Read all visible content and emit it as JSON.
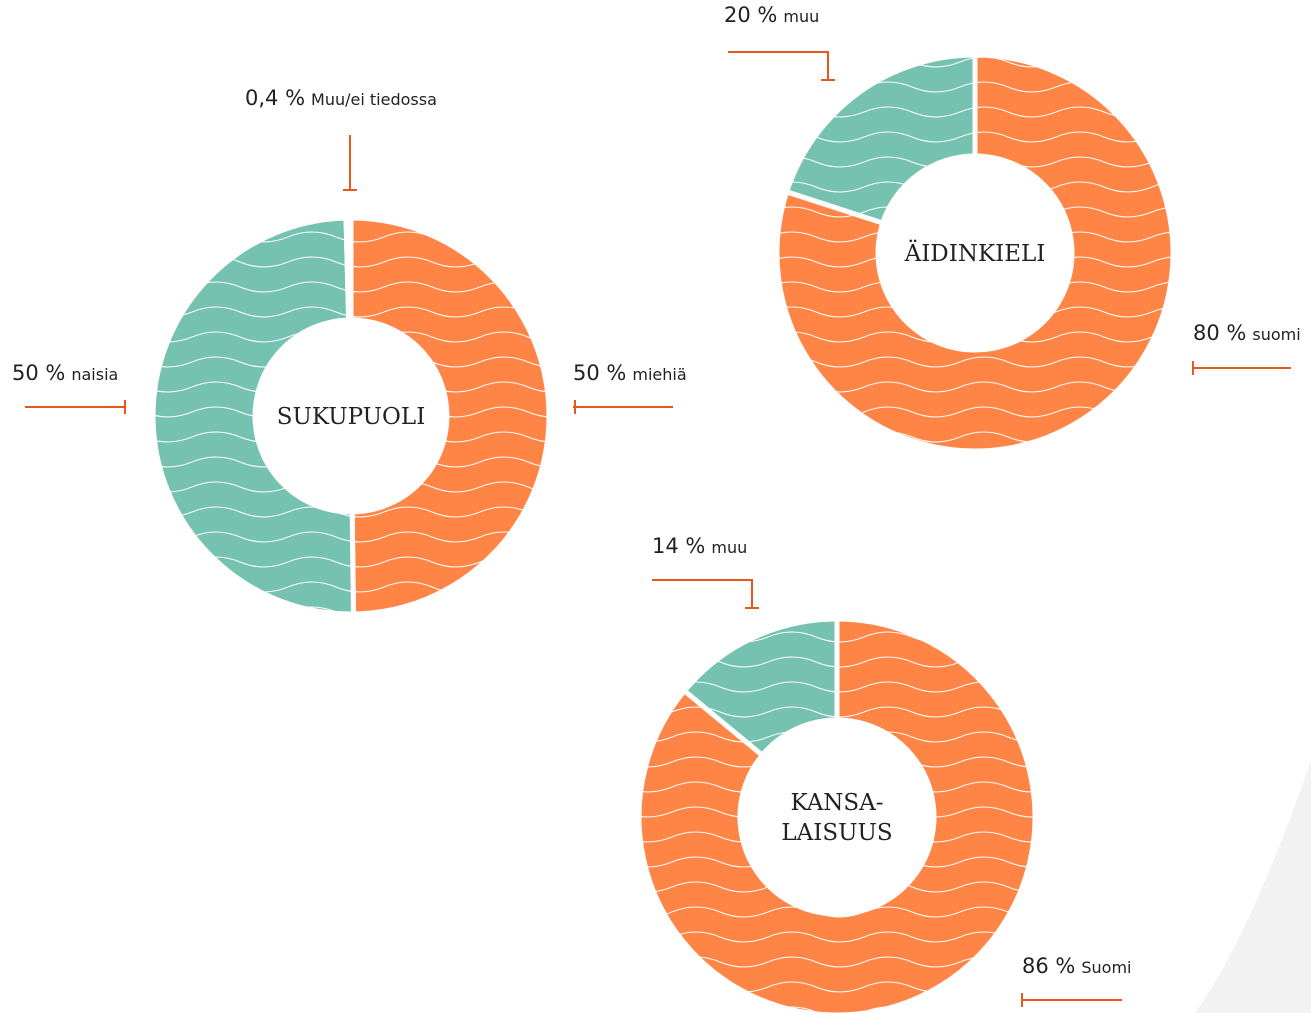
{
  "chart_data": [
    {
      "type": "pie",
      "title": [
        "SUKUPUOLI"
      ],
      "categories": [
        "miehiä",
        "naisia",
        "Muu/ei tiedossa"
      ],
      "values": [
        50,
        50,
        0.4
      ],
      "value_labels": [
        "50 %",
        "50 %",
        "0,4 %"
      ],
      "colors": [
        "#ff8547",
        "#76c2b0",
        "#76c2b0"
      ]
    },
    {
      "type": "pie",
      "title": [
        "ÄIDINKIELI"
      ],
      "categories": [
        "suomi",
        "muu"
      ],
      "values": [
        80,
        20
      ],
      "value_labels": [
        "80 %",
        "20 %"
      ],
      "colors": [
        "#ff8547",
        "#76c2b0"
      ]
    },
    {
      "type": "pie",
      "title": [
        "KANSA-",
        "LAISUUS"
      ],
      "categories": [
        "Suomi",
        "muu"
      ],
      "values": [
        86,
        14
      ],
      "value_labels": [
        "86 %",
        "14 %"
      ],
      "colors": [
        "#ff8547",
        "#76c2b0"
      ]
    }
  ]
}
